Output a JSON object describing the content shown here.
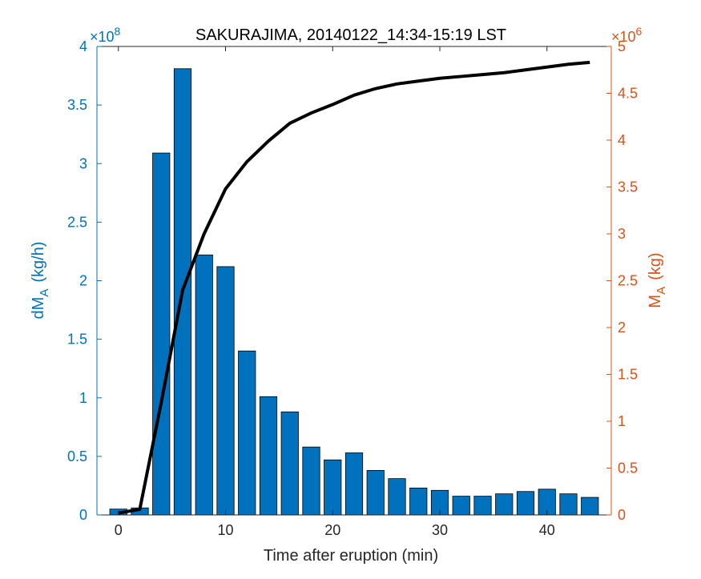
{
  "chart_data": {
    "type": "bar",
    "title": "SAKURAJIMA, 20140122_14:34-15:19 LST",
    "xlabel": "Time after eruption (min)",
    "ylabel_left": {
      "main": "dM",
      "sub": "A",
      "unit": "(kg/h)"
    },
    "ylabel_right": {
      "main": "M",
      "sub": "A",
      "unit": "(kg)"
    },
    "y_left_multiplier": {
      "base": "×10",
      "exp": "8"
    },
    "y_right_multiplier": {
      "base": "×10",
      "exp": "6"
    },
    "xlim": [
      -2,
      46
    ],
    "ylim_left": [
      0,
      400000000
    ],
    "ylim_right": [
      0,
      5000000
    ],
    "x_ticks": [
      0,
      10,
      20,
      30,
      40
    ],
    "x_tick_labels": [
      "0",
      "10",
      "20",
      "30",
      "40"
    ],
    "y_left_ticks": [
      0,
      0.5,
      1,
      1.5,
      2,
      2.5,
      3,
      3.5,
      4
    ],
    "y_left_tick_labels": [
      "0",
      "0.5",
      "1",
      "1.5",
      "2",
      "2.5",
      "3",
      "3.5",
      "4"
    ],
    "y_right_ticks": [
      0,
      0.5,
      1,
      1.5,
      2,
      2.5,
      3,
      3.5,
      4,
      4.5,
      5
    ],
    "y_right_tick_labels": [
      "0",
      "0.5",
      "1",
      "1.5",
      "2",
      "2.5",
      "3",
      "3.5",
      "4",
      "4.5",
      "5"
    ],
    "bar_color": "#0072bd",
    "left_axis_color": "#0072bd",
    "right_axis_color": "#d95319",
    "line_color": "#000000",
    "grid": false,
    "bars": {
      "axis": "left",
      "x": [
        0,
        2,
        4,
        6,
        8,
        10,
        12,
        14,
        16,
        18,
        20,
        22,
        24,
        26,
        28,
        30,
        32,
        34,
        36,
        38,
        40,
        42,
        44
      ],
      "values": [
        5000000,
        6000000,
        309000000,
        381000000,
        222000000,
        212000000,
        140000000,
        101000000,
        88000000,
        58000000,
        47000000,
        53000000,
        38000000,
        31000000,
        23000000,
        21000000,
        16000000,
        16000000,
        18000000,
        20000000,
        22000000,
        18000000,
        15000000
      ]
    },
    "line": {
      "axis": "right",
      "x": [
        0,
        2,
        4,
        6,
        8,
        10,
        12,
        14,
        16,
        18,
        20,
        22,
        24,
        26,
        28,
        30,
        32,
        34,
        36,
        38,
        40,
        42,
        44
      ],
      "values": [
        20000,
        60000,
        1200000,
        2400000,
        3000000,
        3480000,
        3770000,
        3990000,
        4180000,
        4290000,
        4380000,
        4480000,
        4550000,
        4600000,
        4630000,
        4660000,
        4680000,
        4700000,
        4720000,
        4750000,
        4780000,
        4810000,
        4830000
      ]
    }
  }
}
